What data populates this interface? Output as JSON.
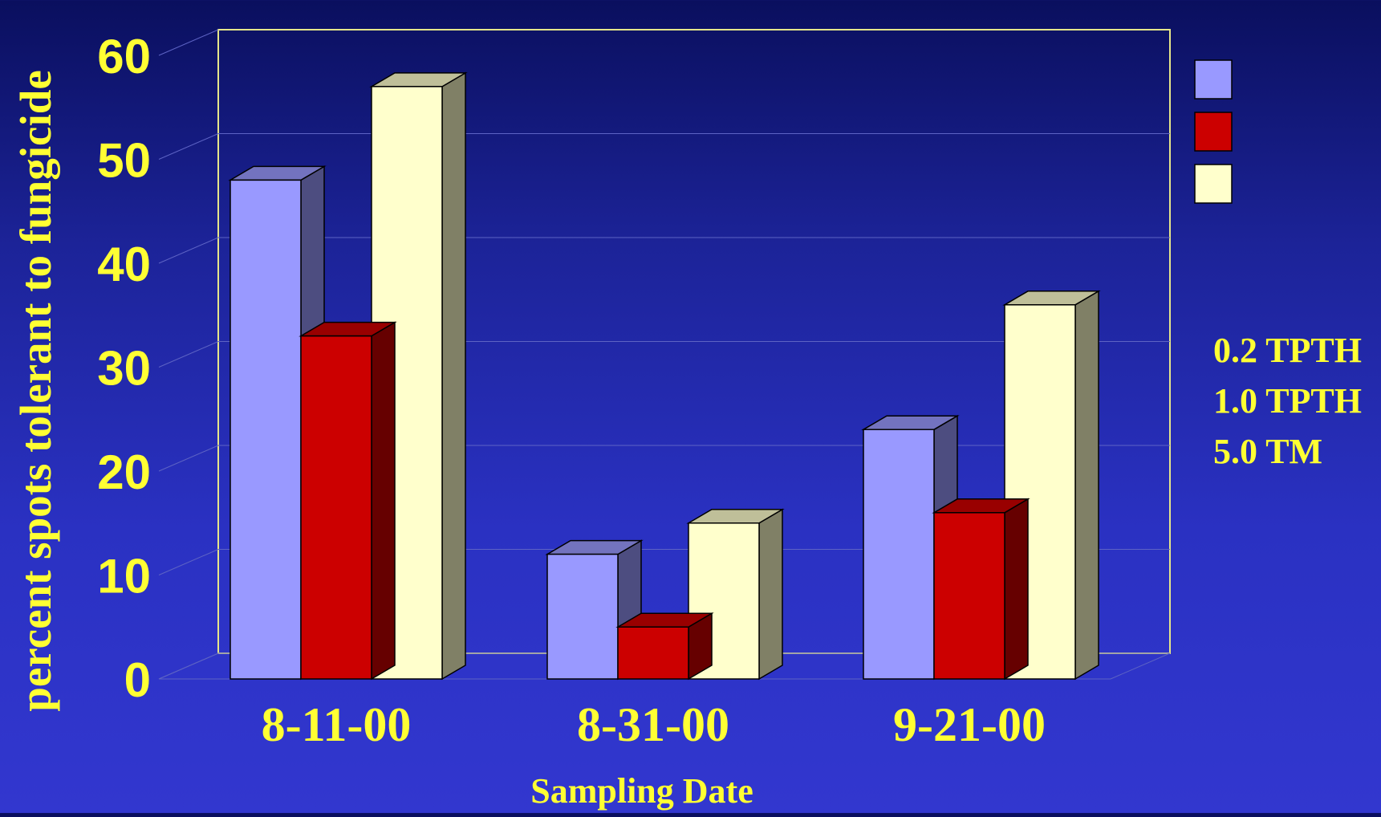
{
  "chart_data": {
    "type": "bar",
    "xlabel": "Sampling Date",
    "ylabel": "percent spots  tolerant to fungicide",
    "categories": [
      "8-11-00",
      "8-31-00",
      "9-21-00"
    ],
    "series": [
      {
        "name": "0.2 TPTH",
        "values": [
          48,
          12,
          24
        ],
        "color": "#9999ff"
      },
      {
        "name": "1.0 TPTH",
        "values": [
          33,
          5,
          16
        ],
        "color": "#cc0000"
      },
      {
        "name": "5.0 TM",
        "values": [
          57,
          15,
          36
        ],
        "color": "#ffffcc"
      }
    ],
    "yticks": [
      "0",
      "10",
      "20",
      "30",
      "40",
      "50",
      "60"
    ],
    "ylim": [
      0,
      60
    ],
    "grid": true,
    "legend": "right",
    "style": "3d-clustered"
  }
}
